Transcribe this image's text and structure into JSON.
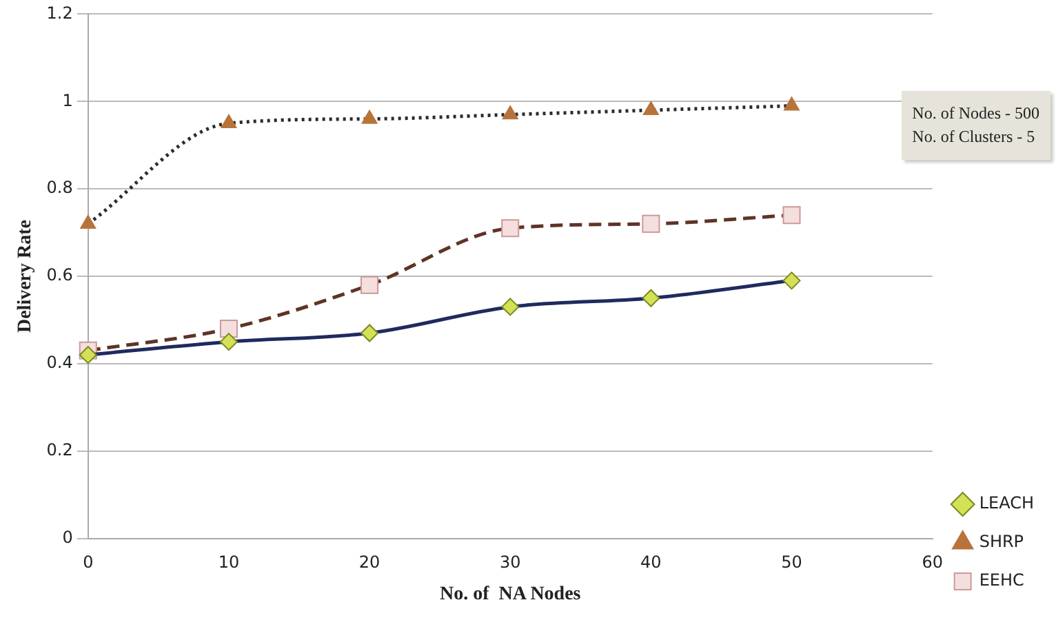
{
  "chart_data": {
    "type": "line",
    "xlabel": "No. of  NA Nodes",
    "ylabel": "Delivery Rate",
    "x": [
      0,
      10,
      20,
      30,
      40,
      50
    ],
    "series": [
      {
        "name": "LEACH",
        "color": "#1f2a5e",
        "colors": [
          "#d4e157",
          "#d4e157",
          "#d4e157",
          "#d4e157",
          "#d4e157",
          "#d4e157"
        ],
        "marker": "diamond",
        "line_style": "solid",
        "values": [
          0.42,
          0.45,
          0.47,
          0.53,
          0.55,
          0.59
        ]
      },
      {
        "name": "EEHC",
        "color": "#5e3426",
        "colors": [
          "#f5dede",
          "#f5dede",
          "#f5dede",
          "#f5dede",
          "#f5dede",
          "#f5dede"
        ],
        "marker": "square",
        "line_style": "dashed",
        "values": [
          0.43,
          0.48,
          0.58,
          0.71,
          0.72,
          0.74
        ]
      },
      {
        "name": "SHRP",
        "color": "#2b2b2b",
        "colors": [
          "#b8733a",
          "#b8733a",
          "#b8733a",
          "#b8733a",
          "#b8733a",
          "#b8733a"
        ],
        "marker": "triangle",
        "line_style": "dotted",
        "values": [
          0.72,
          0.95,
          0.96,
          0.97,
          0.98,
          0.99
        ]
      }
    ],
    "xlim": [
      0,
      60
    ],
    "xticks": [
      0,
      10,
      20,
      30,
      40,
      50,
      60
    ],
    "ylim": [
      0,
      1.2
    ],
    "yticks": [
      0,
      0.2,
      0.4,
      0.6,
      0.8,
      1,
      1.2
    ],
    "grid": "y",
    "legend": "bottom right",
    "annotations": [
      "No. of Nodes - 500",
      "No. of Clusters - 5"
    ]
  }
}
